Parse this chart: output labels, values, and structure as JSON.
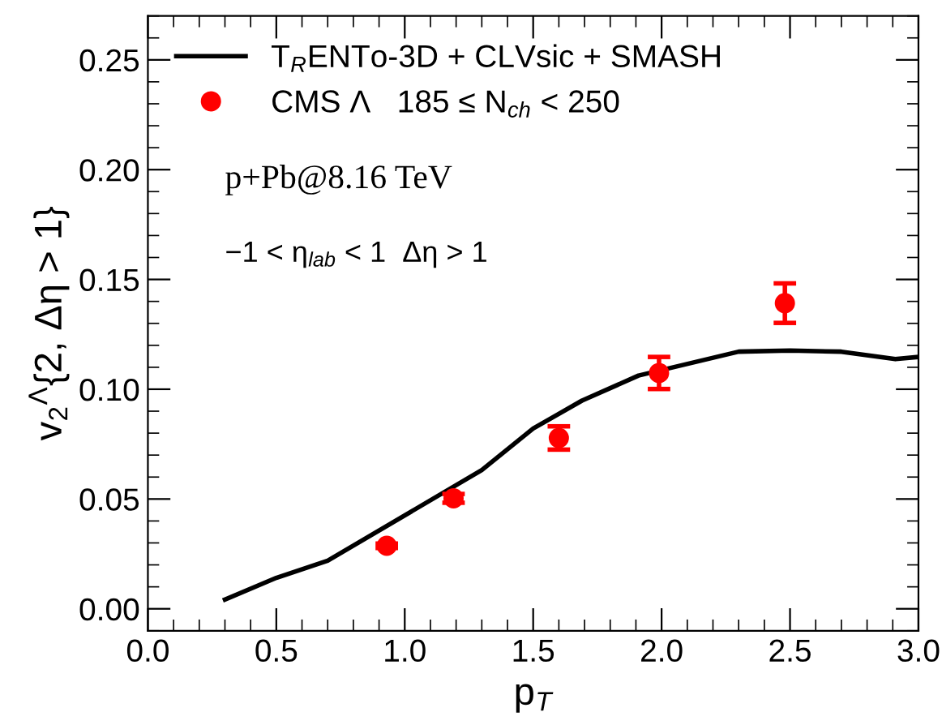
{
  "chart_data": {
    "type": "line",
    "xlabel": "p$_{T}$",
    "ylabel": "v$_{2}$$^{Λ}${2, Δη > 1}",
    "xlim": [
      0,
      3.0
    ],
    "xticks": [
      {
        "value": 0,
        "label": "0.0"
      },
      0.5,
      {
        "value": 1,
        "label": "1.0"
      },
      1.5,
      {
        "value": 2,
        "label": "2.0"
      },
      2.5,
      {
        "value": 3,
        "label": "3.0"
      }
    ],
    "ylim": [
      -0.01,
      0.27
    ],
    "yticks": [
      {
        "value": 0,
        "label": "0.00"
      },
      0.05,
      {
        "value": 0.1,
        "label": "0.10"
      },
      0.15,
      {
        "value": 0.2,
        "label": "0.20"
      },
      0.25
    ],
    "grid": false,
    "legend": "top left",
    "series": [
      {
        "name": "T$_{R}$ENTo-3D + CLVsic + SMASH",
        "color": "#000000",
        "marker": "none",
        "line_style": "solid",
        "x": [
          0.3,
          0.5,
          0.7,
          1.3,
          1.5,
          1.69,
          1.91,
          2.3,
          2.5,
          2.7,
          2.91,
          3.0
        ],
        "values": [
          0.0042,
          0.0141,
          0.0219,
          0.0632,
          0.0821,
          0.0948,
          0.1062,
          0.1171,
          0.1176,
          0.1171,
          0.1137,
          0.1147
        ]
      },
      {
        "name": "CMS Λ   185 ≤ N$_{ch}$ < 250",
        "type": "scatter",
        "color": "#ff0000",
        "marker": "circle",
        "x": [
          0.93,
          1.19,
          1.6,
          1.99,
          2.48
        ],
        "values": [
          0.0287,
          0.0503,
          0.0778,
          0.1074,
          0.1392
        ],
        "errors": [
          0.001,
          0.002,
          0.0053,
          0.0073,
          0.009
        ]
      }
    ],
    "annotations": [
      "p+Pb@8.16 TeV",
      "−1 < η$_{lab}$ < 1  Δη > 1"
    ]
  }
}
